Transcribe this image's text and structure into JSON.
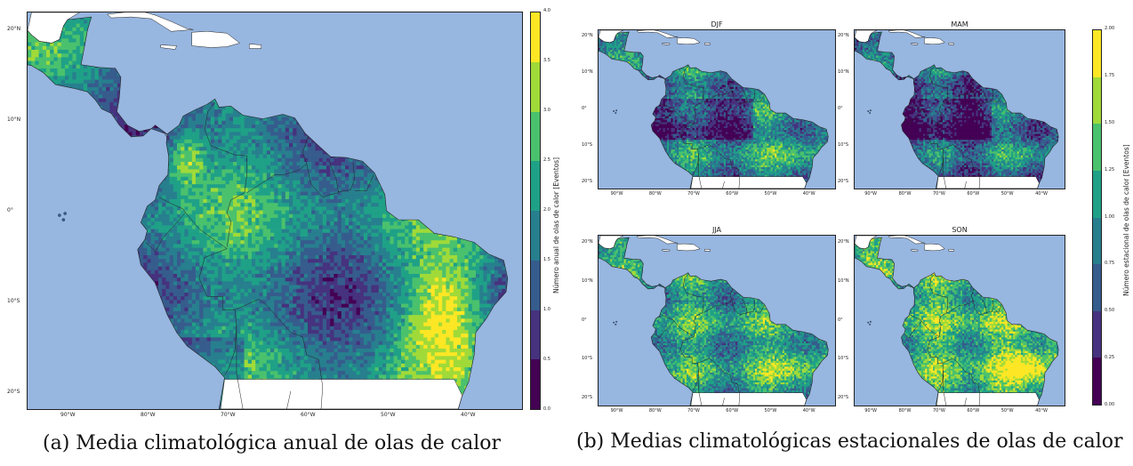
{
  "panel_a": {
    "caption": "(a) Media climatológica anual de olas de calor",
    "lat_ticks": [
      "20°N",
      "10°N",
      "0°",
      "10°S",
      "20°S"
    ],
    "lon_ticks": [
      "90°W",
      "80°W",
      "70°W",
      "60°W",
      "50°W",
      "40°W"
    ],
    "colorbar": {
      "label": "Número anual de olas de calor [Eventos]",
      "ticks": [
        "0.0",
        "0.5",
        "1.0",
        "1.5",
        "2.0",
        "2.5",
        "3.0",
        "3.5",
        "4.0"
      ],
      "min": 0.0,
      "max": 4.0
    }
  },
  "panel_b": {
    "caption": "(b) Medias climatológicas estacionales de olas de calor",
    "seasons": [
      {
        "title": "DJF",
        "mean_level": 0.45
      },
      {
        "title": "MAM",
        "mean_level": 0.35
      },
      {
        "title": "JJA",
        "mean_level": 0.55
      },
      {
        "title": "SON",
        "mean_level": 0.65
      }
    ],
    "lat_ticks": [
      "20°N",
      "10°N",
      "0°",
      "10°S",
      "20°S"
    ],
    "lon_ticks": [
      "90°W",
      "80°W",
      "70°W",
      "60°W",
      "50°W",
      "40°W"
    ],
    "colorbar": {
      "label": "Número estacional de olas de calor [Eventos]",
      "ticks": [
        "0.00",
        "0.25",
        "0.50",
        "0.75",
        "1.00",
        "1.25",
        "1.50",
        "1.75",
        "2.00"
      ],
      "min": 0.0,
      "max": 2.0
    }
  },
  "colors": {
    "ocean": "#97b6e0",
    "nodata_land": "#ffffff",
    "viridis_bins": [
      "#440154",
      "#46327e",
      "#365c8d",
      "#277f8e",
      "#1fa187",
      "#4ac16d",
      "#a0da39",
      "#fde725"
    ]
  }
}
